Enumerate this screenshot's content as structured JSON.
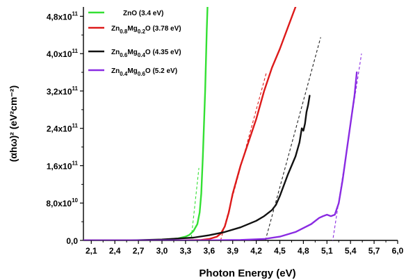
{
  "chart_data": {
    "type": "line",
    "xlabel": "Photon Energy (eV)",
    "ylabel": "(αhω)² (eV²cm⁻²)",
    "xlim": [
      2.0,
      6.0
    ],
    "ylim": [
      0,
      500000000000.0
    ],
    "x_ticks": [
      2.1,
      2.4,
      2.7,
      3.0,
      3.3,
      3.6,
      3.9,
      4.2,
      4.5,
      4.8,
      5.1,
      5.4,
      5.7,
      6.0
    ],
    "x_tick_labels": [
      "2,1",
      "2,4",
      "2,7",
      "3,0",
      "3,3",
      "3,6",
      "3,9",
      "4,2",
      "4,5",
      "4,8",
      "5,1",
      "5,4",
      "5,7",
      "6,0"
    ],
    "y_ticks": [
      0,
      80000000000.0,
      160000000000.0,
      240000000000.0,
      320000000000.0,
      400000000000.0,
      480000000000.0
    ],
    "y_tick_labels": [
      {
        "mantissa": "0,0",
        "exp": ""
      },
      {
        "mantissa": "8,0x10",
        "exp": "10"
      },
      {
        "mantissa": "1,6x10",
        "exp": "11"
      },
      {
        "mantissa": "2,4x10",
        "exp": "11"
      },
      {
        "mantissa": "3,2x10",
        "exp": "11"
      },
      {
        "mantissa": "4,0x10",
        "exp": "11"
      },
      {
        "mantissa": "4,8x10",
        "exp": "11"
      }
    ],
    "grid": false,
    "legend_position": "top-left",
    "series": [
      {
        "name": "ZnO (3.4 eV)",
        "color": "#33e033",
        "legend_parts": [
          {
            "t": "ZnO (3.4 eV)",
            "sub": false
          }
        ],
        "x": [
          2.0,
          2.6,
          3.0,
          3.2,
          3.3,
          3.35,
          3.4,
          3.45,
          3.48,
          3.5,
          3.52,
          3.55,
          3.57,
          3.58
        ],
        "y": [
          0,
          0,
          1000000000.0,
          4000000000.0,
          8000000000.0,
          12000000000.0,
          20000000000.0,
          35000000000.0,
          60000000000.0,
          100000000000.0,
          180000000000.0,
          320000000000.0,
          450000000000.0,
          500000000000.0
        ],
        "fit": {
          "x": [
            3.36,
            3.47
          ],
          "y": [
            -15000000000.0,
            155000000000.0
          ]
        }
      },
      {
        "name": "Zn0.8Mg0.2O (3.78 eV)",
        "color": "#dd1a1a",
        "legend_parts": [
          {
            "t": "Zn",
            "sub": false
          },
          {
            "t": "0.8",
            "sub": true
          },
          {
            "t": "Mg",
            "sub": false
          },
          {
            "t": "0.2",
            "sub": true
          },
          {
            "t": "O (3.78 eV)",
            "sub": false
          }
        ],
        "x": [
          2.0,
          3.2,
          3.5,
          3.6,
          3.7,
          3.75,
          3.8,
          3.85,
          3.9,
          4.0,
          4.1,
          4.2,
          4.3,
          4.4,
          4.5,
          4.6,
          4.7
        ],
        "y": [
          0,
          0,
          1000000000.0,
          3000000000.0,
          8000000000.0,
          15000000000.0,
          30000000000.0,
          60000000000.0,
          100000000000.0,
          160000000000.0,
          210000000000.0,
          260000000000.0,
          320000000000.0,
          370000000000.0,
          410000000000.0,
          455000000000.0,
          500000000000.0
        ],
        "fit": {
          "x": [
            3.73,
            4.33
          ],
          "y": [
            -10000000000.0,
            360000000000.0
          ]
        }
      },
      {
        "name": "Zn0.6Mg0.4O (4.35 eV)",
        "color": "#111111",
        "legend_parts": [
          {
            "t": "Zn",
            "sub": false
          },
          {
            "t": "0.6",
            "sub": true
          },
          {
            "t": "Mg",
            "sub": false
          },
          {
            "t": "0.4",
            "sub": true
          },
          {
            "t": "O (4.35 eV)",
            "sub": false
          }
        ],
        "x": [
          2.0,
          2.6,
          3.0,
          3.4,
          3.6,
          3.8,
          4.0,
          4.2,
          4.3,
          4.4,
          4.45,
          4.5,
          4.6,
          4.7,
          4.75,
          4.78,
          4.8,
          4.82,
          4.84,
          4.86,
          4.87,
          4.88
        ],
        "y": [
          0,
          0,
          2000000000.0,
          6000000000.0,
          11000000000.0,
          18000000000.0,
          28000000000.0,
          42000000000.0,
          52000000000.0,
          65000000000.0,
          76000000000.0,
          95000000000.0,
          140000000000.0,
          180000000000.0,
          210000000000.0,
          240000000000.0,
          235000000000.0,
          250000000000.0,
          275000000000.0,
          290000000000.0,
          300000000000.0,
          310000000000.0
        ],
        "fit": {
          "x": [
            4.3,
            5.02
          ],
          "y": [
            -10000000000.0,
            435000000000.0
          ]
        }
      },
      {
        "name": "Zn0.4Mg0.6O (5.2 eV)",
        "color": "#8a2be2",
        "legend_parts": [
          {
            "t": "Zn",
            "sub": false
          },
          {
            "t": "0.4",
            "sub": true
          },
          {
            "t": "Mg",
            "sub": false
          },
          {
            "t": "0.6",
            "sub": true
          },
          {
            "t": "O (5.2 eV)",
            "sub": false
          }
        ],
        "x": [
          2.0,
          3.5,
          4.0,
          4.3,
          4.5,
          4.7,
          4.9,
          5.0,
          5.05,
          5.1,
          5.15,
          5.2,
          5.25,
          5.3,
          5.35,
          5.4,
          5.45,
          5.48
        ],
        "y": [
          0,
          0,
          1000000000.0,
          3000000000.0,
          8000000000.0,
          18000000000.0,
          35000000000.0,
          48000000000.0,
          52000000000.0,
          55000000000.0,
          52000000000.0,
          55000000000.0,
          80000000000.0,
          130000000000.0,
          190000000000.0,
          250000000000.0,
          310000000000.0,
          360000000000.0
        ],
        "fit": {
          "x": [
            5.16,
            5.54
          ],
          "y": [
            -15000000000.0,
            400000000000.0
          ]
        }
      }
    ]
  }
}
